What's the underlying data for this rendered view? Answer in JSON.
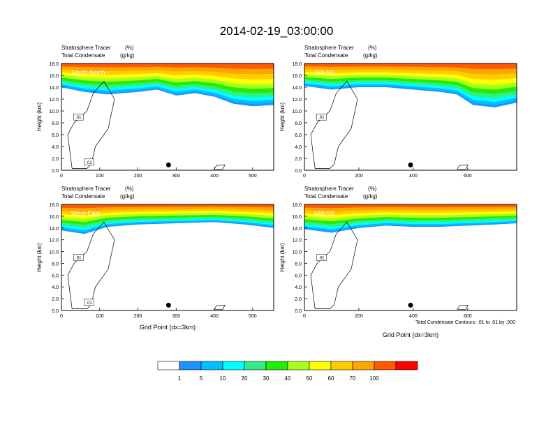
{
  "figure": {
    "title": "2014-02-19_03:00:00",
    "contour_note": "Total Condensate Contours: .01 to .01 by .000",
    "xlabel": "Grid Point (dx=3km)",
    "ylabel": "Height (km)",
    "left_string_1": "Stratosphere Tracer",
    "right_string_1": "(%)",
    "left_string_2": "Total Condensate",
    "right_string_2": "(g/kg)"
  },
  "colorbar": {
    "labels": [
      "1",
      "5",
      "10",
      "20",
      "30",
      "40",
      "50",
      "60",
      "70",
      "100"
    ],
    "colors": [
      "#ffffff",
      "#1e90ff",
      "#00bfff",
      "#00ffff",
      "#33ee88",
      "#22ee00",
      "#aaff22",
      "#ffff00",
      "#ffcc00",
      "#ffa500",
      "#ff5a00",
      "#ff0000"
    ]
  },
  "chart_data": [
    {
      "type": "heatmap",
      "panel_label": "South-North",
      "xlim": [
        0,
        555
      ],
      "ylim": [
        0,
        18
      ],
      "xticks": [
        0,
        100,
        200,
        300,
        400,
        500
      ],
      "yticks": [
        0,
        2,
        4,
        6,
        8,
        10,
        12,
        14,
        16,
        18
      ],
      "ytick_labels": [
        "0.0",
        "2.0",
        "4.0",
        "6.0",
        "8.0",
        "10.0",
        "12.0",
        "14.0",
        "16.0",
        "18.0"
      ],
      "xlabel": "",
      "ylabel": "Height (km)",
      "contour_labels": [
        ".01",
        ".01"
      ],
      "dot_x": 280,
      "tracer_base_km": [
        [
          0,
          14.0
        ],
        [
          60,
          13.2
        ],
        [
          120,
          12.8
        ],
        [
          200,
          13.2
        ],
        [
          250,
          13.6
        ],
        [
          300,
          12.6
        ],
        [
          350,
          13.0
        ],
        [
          400,
          12.4
        ],
        [
          450,
          11.2
        ],
        [
          500,
          10.8
        ],
        [
          555,
          11.0
        ]
      ]
    },
    {
      "type": "heatmap",
      "panel_label": "SW-NE",
      "xlim": [
        0,
        780
      ],
      "ylim": [
        0,
        18
      ],
      "xticks": [
        0,
        200,
        400,
        600
      ],
      "yticks": [
        0,
        2,
        4,
        6,
        8,
        10,
        12,
        14,
        16,
        18
      ],
      "ytick_labels": [
        "0.0",
        "2.0",
        "4.0",
        "6.0",
        "8.0",
        "10.0",
        "12.0",
        "14.0",
        "16.0",
        "18.0"
      ],
      "xlabel": "",
      "ylabel": "Height (km)",
      "contour_labels": [
        ".01"
      ],
      "dot_x": 390,
      "tracer_base_km": [
        [
          0,
          14.2
        ],
        [
          100,
          13.6
        ],
        [
          200,
          14.0
        ],
        [
          300,
          14.0
        ],
        [
          400,
          13.6
        ],
        [
          500,
          13.2
        ],
        [
          560,
          12.8
        ],
        [
          620,
          11.0
        ],
        [
          700,
          10.6
        ],
        [
          780,
          11.4
        ]
      ]
    },
    {
      "type": "heatmap",
      "panel_label": "West-East",
      "xlim": [
        0,
        555
      ],
      "ylim": [
        0,
        18
      ],
      "xticks": [
        0,
        100,
        200,
        300,
        400,
        500
      ],
      "yticks": [
        0,
        2,
        4,
        6,
        8,
        10,
        12,
        14,
        16,
        18
      ],
      "ytick_labels": [
        "0.0",
        "2.0",
        "4.0",
        "6.0",
        "8.0",
        "10.0",
        "12.0",
        "14.0",
        "16.0",
        "18.0"
      ],
      "xlabel": "Grid Point (dx=3km)",
      "ylabel": "Height (km)",
      "contour_labels": [
        ".01",
        ".01"
      ],
      "dot_x": 280,
      "tracer_base_km": [
        [
          0,
          13.6
        ],
        [
          60,
          13.0
        ],
        [
          120,
          14.2
        ],
        [
          200,
          14.6
        ],
        [
          300,
          14.8
        ],
        [
          400,
          15.0
        ],
        [
          480,
          14.6
        ],
        [
          555,
          14.0
        ]
      ]
    },
    {
      "type": "heatmap",
      "panel_label": "NW-SE",
      "xlim": [
        0,
        780
      ],
      "ylim": [
        0,
        18
      ],
      "xticks": [
        0,
        200,
        400,
        600
      ],
      "yticks": [
        0,
        2,
        4,
        6,
        8,
        10,
        12,
        14,
        16,
        18
      ],
      "ytick_labels": [
        "0.0",
        "2.0",
        "4.0",
        "6.0",
        "8.0",
        "10.0",
        "12.0",
        "14.0",
        "16.0",
        "18.0"
      ],
      "xlabel": "Grid Point (dx=3km)",
      "ylabel": "Height (km)",
      "contour_labels": [
        ".01"
      ],
      "dot_x": 390,
      "tracer_base_km": [
        [
          0,
          13.8
        ],
        [
          100,
          13.2
        ],
        [
          200,
          14.0
        ],
        [
          300,
          14.4
        ],
        [
          400,
          14.2
        ],
        [
          500,
          14.2
        ],
        [
          600,
          14.4
        ],
        [
          700,
          14.6
        ],
        [
          780,
          14.8
        ]
      ]
    }
  ]
}
